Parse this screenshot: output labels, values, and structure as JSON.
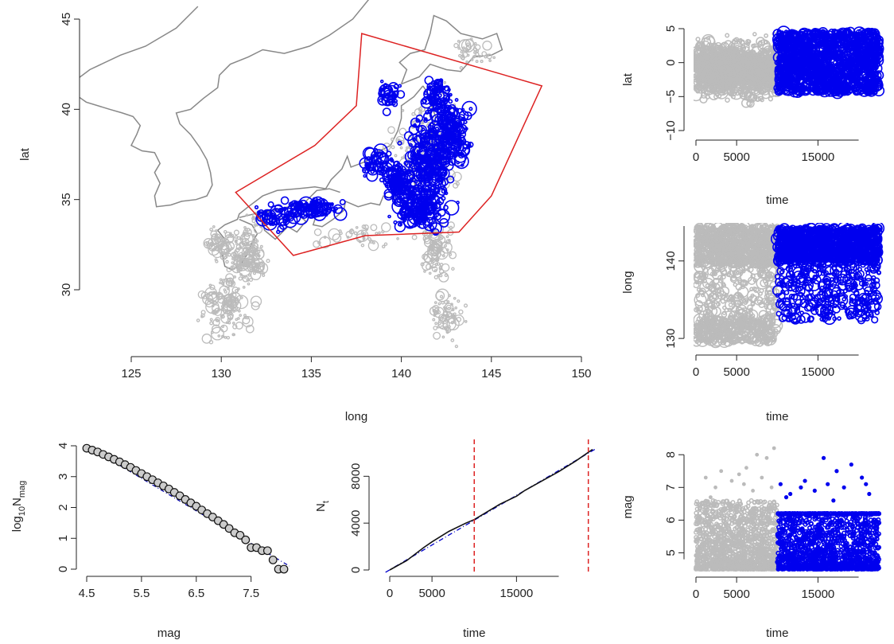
{
  "chart_data": [
    {
      "id": "map",
      "type": "scatter",
      "xlabel": "long",
      "ylabel": "lat",
      "xticks": [
        "125",
        "130",
        "135",
        "140",
        "145",
        "150"
      ],
      "yticks": [
        "30",
        "35",
        "40",
        "45"
      ],
      "xlim": [
        125,
        150
      ],
      "ylim": [
        26.5,
        45
      ],
      "polygon": {
        "color": "#dd2222",
        "vertices": [
          [
            130.8,
            35.4
          ],
          [
            135.2,
            38.0
          ],
          [
            137.5,
            40.2
          ],
          [
            137.8,
            44.2
          ],
          [
            147.8,
            41.3
          ],
          [
            145.0,
            35.2
          ],
          [
            143.2,
            33.2
          ],
          [
            138.0,
            33.0
          ],
          [
            134.0,
            31.9
          ]
        ]
      },
      "series": [
        {
          "color": "#bbbbbb"
        },
        {
          "color": "#0000ee"
        }
      ],
      "coast_color": "#888888"
    },
    {
      "id": "lat_time",
      "type": "scatter",
      "xlabel": "time",
      "ylabel": "lat",
      "xticks": [
        "0",
        "5000",
        "15000"
      ],
      "yticks": [
        "−10",
        "−5",
        "0",
        "5"
      ],
      "xlim": [
        0,
        22000
      ],
      "ylim": [
        -10,
        5
      ],
      "split_time": 10000,
      "series": [
        {
          "color": "#bbbbbb"
        },
        {
          "color": "#0000ee"
        }
      ]
    },
    {
      "id": "long_time",
      "type": "scatter",
      "xlabel": "time",
      "ylabel": "long",
      "xticks": [
        "0",
        "5000",
        "15000"
      ],
      "yticks": [
        "130",
        "140"
      ],
      "xlim": [
        0,
        22000
      ],
      "ylim": [
        129.5,
        144.5
      ],
      "split_time": 10000,
      "series": [
        {
          "color": "#bbbbbb"
        },
        {
          "color": "#0000ee"
        }
      ]
    },
    {
      "id": "gr",
      "type": "scatter",
      "xlabel": "mag",
      "ylabel": "log10Nmag",
      "xticks": [
        "4.5",
        "5.5",
        "6.5",
        "7.5"
      ],
      "yticks": [
        "0",
        "1",
        "2",
        "3",
        "4"
      ],
      "xlim": [
        4.5,
        8.1
      ],
      "ylim": [
        0,
        4
      ],
      "points": [
        [
          4.5,
          3.92
        ],
        [
          4.6,
          3.86
        ],
        [
          4.7,
          3.8
        ],
        [
          4.8,
          3.72
        ],
        [
          4.9,
          3.64
        ],
        [
          5.0,
          3.56
        ],
        [
          5.1,
          3.48
        ],
        [
          5.2,
          3.39
        ],
        [
          5.3,
          3.3
        ],
        [
          5.4,
          3.2
        ],
        [
          5.5,
          3.1
        ],
        [
          5.6,
          3.0
        ],
        [
          5.7,
          2.9
        ],
        [
          5.8,
          2.8
        ],
        [
          5.9,
          2.7
        ],
        [
          6.0,
          2.6
        ],
        [
          6.1,
          2.49
        ],
        [
          6.2,
          2.38
        ],
        [
          6.3,
          2.26
        ],
        [
          6.4,
          2.15
        ],
        [
          6.5,
          2.04
        ],
        [
          6.6,
          1.92
        ],
        [
          6.7,
          1.8
        ],
        [
          6.8,
          1.69
        ],
        [
          6.9,
          1.57
        ],
        [
          7.0,
          1.45
        ],
        [
          7.1,
          1.32
        ],
        [
          7.2,
          1.18
        ],
        [
          7.3,
          1.1
        ],
        [
          7.4,
          0.95
        ],
        [
          7.5,
          0.7
        ],
        [
          7.6,
          0.7
        ],
        [
          7.7,
          0.6
        ],
        [
          7.8,
          0.6
        ],
        [
          7.9,
          0.3
        ],
        [
          8.0,
          0.0
        ],
        [
          8.1,
          0.0
        ]
      ],
      "fit": {
        "x": [
          4.5,
          8.2
        ],
        "y": [
          4.0,
          0.1
        ],
        "color": "#0000aa"
      }
    },
    {
      "id": "nt",
      "type": "line",
      "xlabel": "time",
      "ylabel": "Nt",
      "xticks": [
        "0",
        "5000",
        "15000"
      ],
      "yticks": [
        "0",
        "4000",
        "8000"
      ],
      "xlim": [
        0,
        24000
      ],
      "ylim": [
        0,
        10400
      ],
      "x": [
        0,
        2000,
        4000,
        5000,
        7000,
        9000,
        10000,
        13000,
        15000,
        16000,
        18000,
        20000,
        22000,
        24000
      ],
      "y": [
        0,
        800,
        1900,
        2400,
        3300,
        4000,
        4300,
        5600,
        6300,
        6800,
        7600,
        8400,
        9300,
        10300
      ],
      "fit": {
        "x": [
          -500,
          24500
        ],
        "y": [
          -200,
          10400
        ],
        "color": "#0000cc"
      },
      "vlines": [
        {
          "x": 10000,
          "color": "#dd2222"
        },
        {
          "x": 23500,
          "color": "#dd2222"
        }
      ]
    },
    {
      "id": "mag_time",
      "type": "scatter",
      "xlabel": "time",
      "ylabel": "mag",
      "xticks": [
        "0",
        "5000",
        "15000"
      ],
      "yticks": [
        "5",
        "6",
        "7",
        "8"
      ],
      "xlim": [
        0,
        22000
      ],
      "ylim": [
        4.5,
        8.2
      ],
      "split_time": 10000,
      "large_grey": [
        [
          1200,
          7.3
        ],
        [
          2400,
          7.0
        ],
        [
          3100,
          7.5
        ],
        [
          4400,
          7.2
        ],
        [
          5300,
          7.4
        ],
        [
          6200,
          7.6
        ],
        [
          7500,
          8.0
        ],
        [
          8100,
          7.3
        ],
        [
          8700,
          7.9
        ],
        [
          9600,
          8.2
        ],
        [
          1800,
          6.7
        ],
        [
          5900,
          7.1
        ],
        [
          7000,
          6.9
        ],
        [
          9300,
          7.0
        ]
      ],
      "large_blue": [
        [
          10400,
          7.1
        ],
        [
          11600,
          6.8
        ],
        [
          12900,
          7.0
        ],
        [
          13400,
          7.2
        ],
        [
          14600,
          6.9
        ],
        [
          15700,
          7.9
        ],
        [
          16200,
          7.1
        ],
        [
          17300,
          7.5
        ],
        [
          18200,
          7.0
        ],
        [
          19100,
          7.7
        ],
        [
          20400,
          7.3
        ],
        [
          21300,
          6.8
        ],
        [
          11100,
          6.7
        ],
        [
          16900,
          6.6
        ],
        [
          20900,
          7.1
        ]
      ],
      "series": [
        {
          "color": "#bbbbbb"
        },
        {
          "color": "#0000ee"
        }
      ]
    }
  ]
}
